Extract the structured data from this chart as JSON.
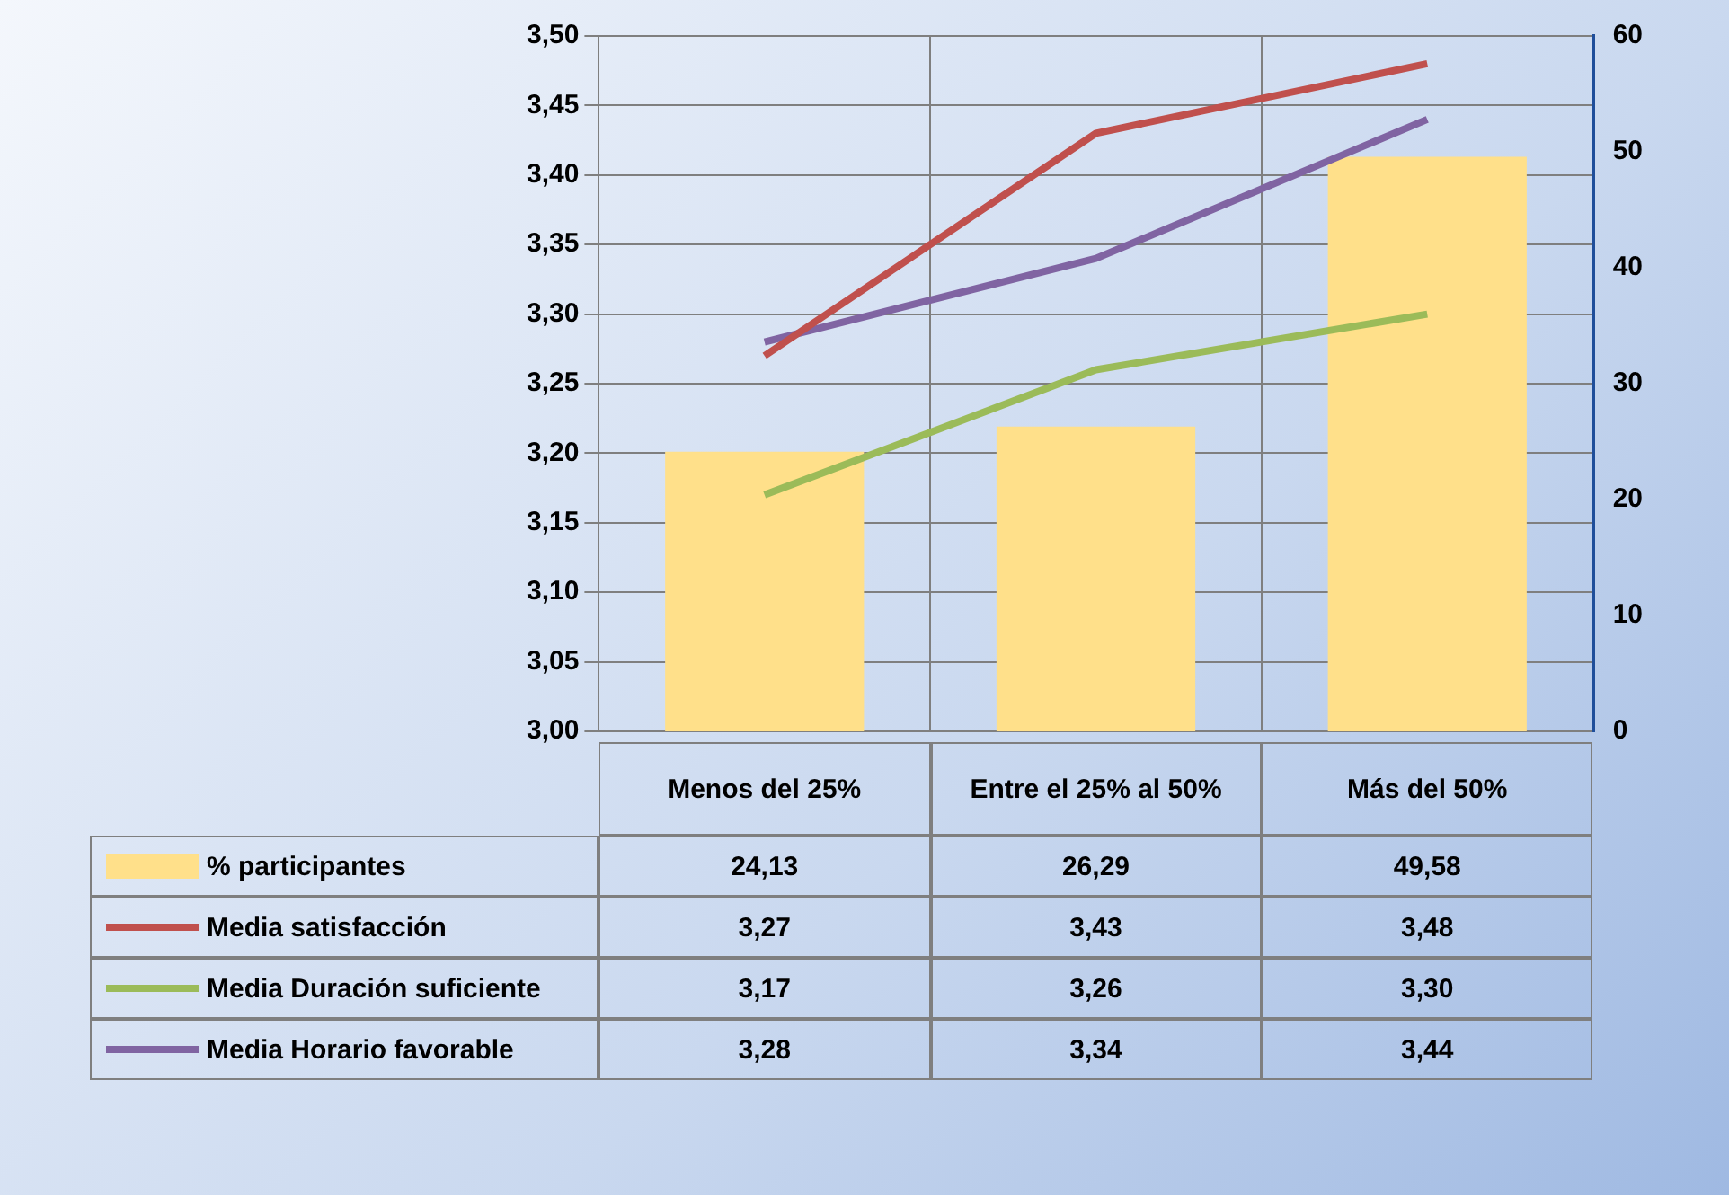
{
  "chart_data": {
    "type": "line",
    "categories": [
      "Menos del 25%",
      "Entre el 25% al 50%",
      "Más del 50%"
    ],
    "series": [
      {
        "name": "% participantes",
        "type": "bar",
        "axis": "y2",
        "color": "#ffe08a",
        "values": [
          24.13,
          26.29,
          49.58
        ],
        "value_labels": [
          "24,13",
          "26,29",
          "49,58"
        ]
      },
      {
        "name": "Media satisfacción",
        "axis": "y",
        "color": "#c0504d",
        "values": [
          3.27,
          3.43,
          3.48
        ],
        "value_labels": [
          "3,27",
          "3,43",
          "3,48"
        ]
      },
      {
        "name": "Media Duración suficiente",
        "axis": "y",
        "color": "#9bbb59",
        "values": [
          3.17,
          3.26,
          3.3
        ],
        "value_labels": [
          "3,17",
          "3,26",
          "3,30"
        ]
      },
      {
        "name": "Media Horario favorable",
        "axis": "y",
        "color": "#8064a2",
        "values": [
          3.28,
          3.34,
          3.44
        ],
        "value_labels": [
          "3,28",
          "3,34",
          "3,44"
        ]
      }
    ],
    "ylim": [
      3.0,
      3.5
    ],
    "yticks": [
      {
        "value": 3.0,
        "label": "3,00"
      },
      {
        "value": 3.05,
        "label": "3,05"
      },
      {
        "value": 3.1,
        "label": "3,10"
      },
      {
        "value": 3.15,
        "label": "3,15"
      },
      {
        "value": 3.2,
        "label": "3,20"
      },
      {
        "value": 3.25,
        "label": "3,25"
      },
      {
        "value": 3.3,
        "label": "3,30"
      },
      {
        "value": 3.35,
        "label": "3,35"
      },
      {
        "value": 3.4,
        "label": "3,40"
      },
      {
        "value": 3.45,
        "label": "3,45"
      },
      {
        "value": 3.5,
        "label": "3,50"
      }
    ],
    "y2lim": [
      0,
      60
    ],
    "y2ticks": [
      0,
      10,
      20,
      30,
      40,
      50,
      60
    ],
    "grid": true,
    "legend": "bottom",
    "marker": "none",
    "line_style": "solid"
  }
}
